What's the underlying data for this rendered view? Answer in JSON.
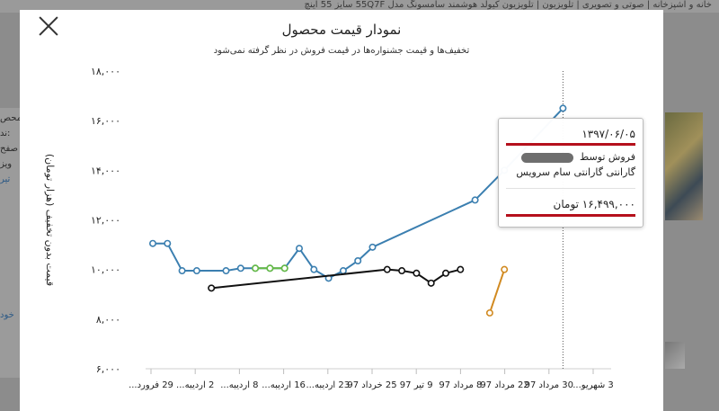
{
  "background": {
    "breadcrumb": "خانه و آشپزخانه | صوتی و تصویری | تلویزیون | تلویزیون کیولد هوشمند سامسونگ مدل 55Q7F سایز 55 اینچ",
    "left_fragments": [
      "محص",
      "ند:",
      "صفح",
      "ویز",
      "تیر",
      "خود"
    ]
  },
  "modal": {
    "close_icon": "close-icon",
    "title": "نمودار قیمت محصول",
    "subtitle": "تخفیف‌ها و قیمت جشنواره‌ها در قیمت فروش در نظر گرفته نمی‌شود"
  },
  "tooltip": {
    "date": "۱۳۹۷/۰۶/۰۵",
    "sold_by": "فروش توسط",
    "seller": "گارانتی گارانتی سام سرویس",
    "price": "۱۶,۴۹۹,۰۰۰ تومان"
  },
  "chart_data": {
    "type": "line",
    "title": "نمودار قیمت محصول",
    "subtitle": "تخفیف‌ها و قیمت جشنواره‌ها در قیمت فروش در نظر گرفته نمی‌شود",
    "ylabel": "قیمت بدون تخفیف (هزار تومان)",
    "ylim": [
      6000,
      18000
    ],
    "yticks": [
      "۶,۰۰۰",
      "۸,۰۰۰",
      "۱۰,۰۰۰",
      "۱۲,۰۰۰",
      "۱۴,۰۰۰",
      "۱۶,۰۰۰",
      "۱۸,۰۰۰"
    ],
    "ytick_values": [
      6000,
      8000,
      10000,
      12000,
      14000,
      16000,
      18000
    ],
    "xtick_labels": [
      "29 فرورد...",
      "2 اردیبه...",
      "8 اردیبه...",
      "16 اردیبه...",
      "23 اردیبه...",
      "25 خرداد 97",
      "9 تیر 97",
      "8 مرداد 97",
      "22 مرداد 97",
      "30 مرداد 97",
      "3 شهریو..."
    ],
    "grid": false,
    "legend": "none",
    "hover_index": 28,
    "series": [
      {
        "color": "#3b7fb0",
        "points": [
          [
            0,
            11050
          ],
          [
            1,
            11050
          ],
          [
            2,
            9950
          ],
          [
            3,
            9950
          ],
          [
            5,
            9950
          ],
          [
            6,
            10050
          ],
          [
            7,
            10050
          ],
          [
            8,
            10050
          ],
          [
            9,
            10050
          ],
          [
            10,
            10850
          ],
          [
            11,
            10000
          ],
          [
            12,
            9650
          ],
          [
            13,
            9950
          ],
          [
            14,
            10350
          ],
          [
            15,
            10900
          ],
          [
            22,
            12800
          ],
          [
            24,
            14000
          ],
          [
            28,
            16499
          ]
        ]
      },
      {
        "color": "#66bb44",
        "points": [
          [
            7,
            10050
          ],
          [
            8,
            10050
          ],
          [
            9,
            10050
          ]
        ]
      },
      {
        "color": "#111111",
        "points": [
          [
            4,
            9250
          ],
          [
            16,
            10000
          ],
          [
            17,
            9950
          ],
          [
            18,
            9850
          ],
          [
            19,
            9450
          ],
          [
            20,
            9850
          ],
          [
            21,
            10000
          ]
        ]
      },
      {
        "color": "#d18a21",
        "points": [
          [
            23,
            8250
          ],
          [
            24,
            10000
          ]
        ]
      }
    ]
  }
}
